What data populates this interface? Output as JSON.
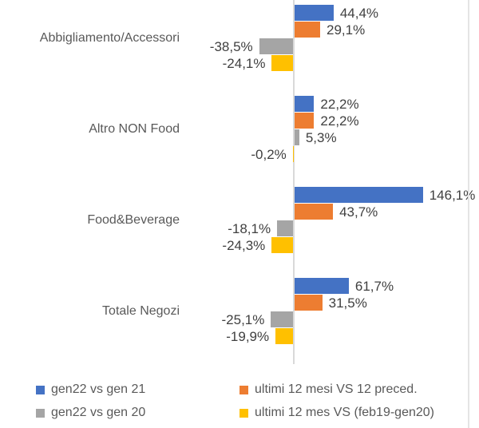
{
  "chart_data": {
    "type": "bar",
    "orientation": "horizontal",
    "value_unit": "%",
    "title": "",
    "xlabel": "",
    "ylabel": "",
    "categories": [
      "Abbigliamento/Accessori",
      "Altro NON Food",
      "Food&Beverage",
      "Totale Negozi"
    ],
    "series": [
      {
        "name": "gen22 vs gen 21",
        "color": "#4472C4",
        "values": [
          44.4,
          22.2,
          146.1,
          61.7
        ],
        "labels": [
          "44,4%",
          "22,2%",
          "146,1%",
          "61,7%"
        ]
      },
      {
        "name": "ultimi 12 mesi VS 12 preced.",
        "color": "#ED7D31",
        "values": [
          29.1,
          22.2,
          43.7,
          31.5
        ],
        "labels": [
          "29,1%",
          "22,2%",
          "43,7%",
          "31,5%"
        ]
      },
      {
        "name": "gen22 vs gen 20",
        "color": "#A5A5A5",
        "values": [
          -38.5,
          5.3,
          -18.1,
          -25.1
        ],
        "labels": [
          "-38,5%",
          "5,3%",
          "-18,1%",
          "-25,1%"
        ]
      },
      {
        "name": "ultimi 12 mes VS (feb19-gen20)",
        "color": "#FFC000",
        "values": [
          -24.1,
          -0.2,
          -24.3,
          -19.9
        ],
        "labels": [
          "-24,1%",
          "-0,2%",
          "-24,3%",
          "-19,9%"
        ]
      }
    ],
    "legend": {
      "position": "bottom",
      "columns": 2,
      "entries": [
        "gen22 vs gen 21",
        "ultimi 12 mesi VS 12 preced.",
        "gen22 vs gen 20",
        "ultimi 12 mes VS (feb19-gen20)"
      ]
    },
    "axes": {
      "zero_line": true,
      "value_axis_tick_labels_visible": false,
      "grid": false,
      "approx_value_range": [
        -45,
        212
      ]
    }
  },
  "colors": {
    "background": "#FFFFFF",
    "axis_line": "#D9D9D9",
    "data_label_text": "#404040",
    "category_label_text": "#595959",
    "legend_text": "#595959",
    "frame_border": "#E4E4E4"
  }
}
